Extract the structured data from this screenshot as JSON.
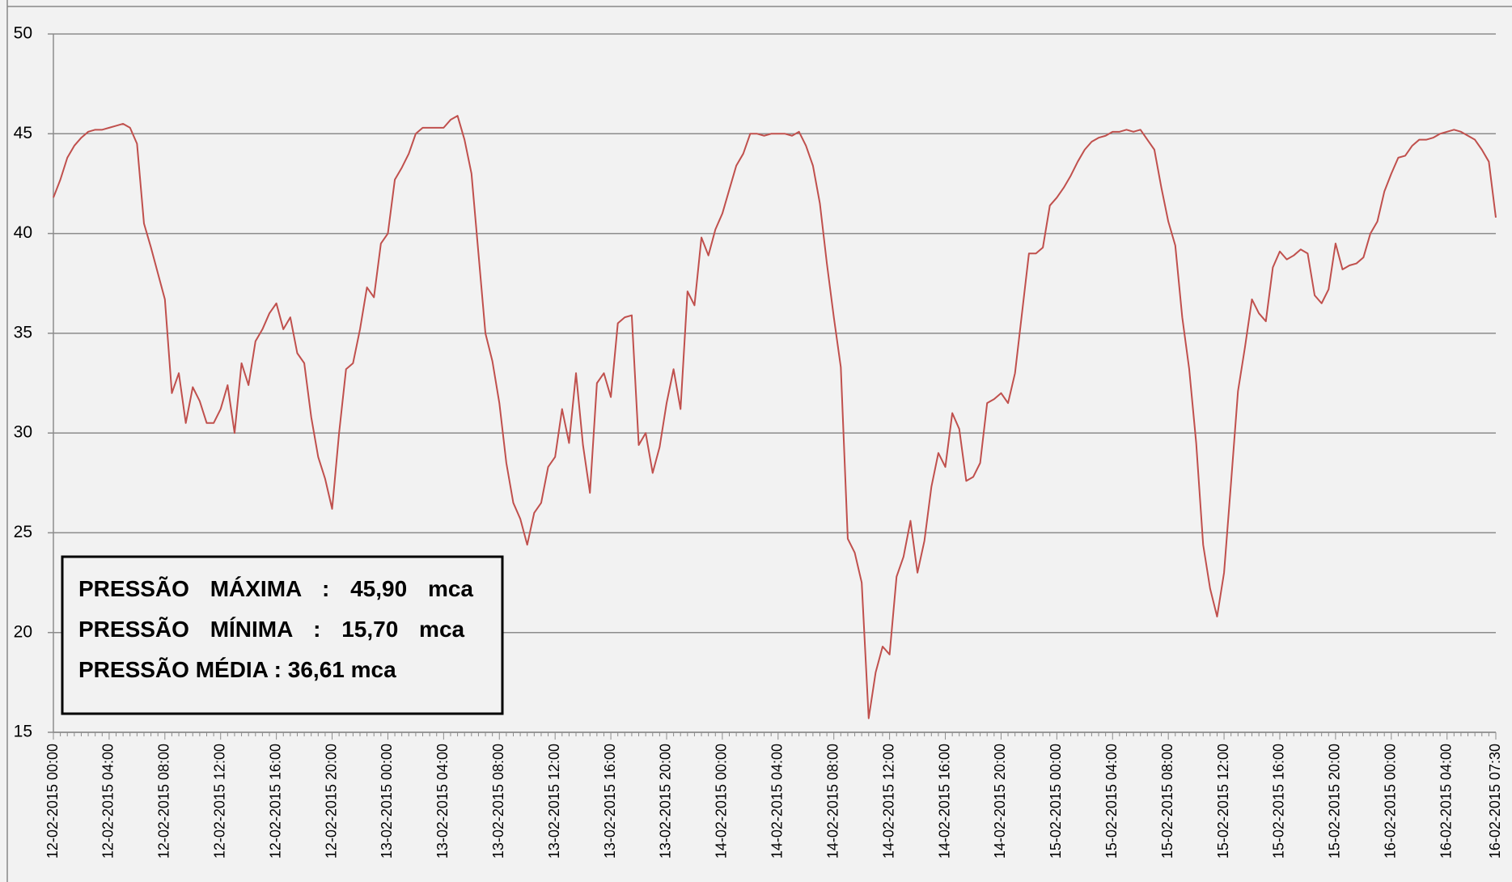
{
  "chart_data": {
    "type": "line",
    "categories": [
      "12-02-2015 00:00",
      null,
      null,
      null,
      null,
      null,
      null,
      null,
      "12-02-2015 04:00",
      null,
      null,
      null,
      null,
      null,
      null,
      null,
      "12-02-2015 08:00",
      null,
      null,
      null,
      null,
      null,
      null,
      null,
      "12-02-2015 12:00",
      null,
      null,
      null,
      null,
      null,
      null,
      null,
      "12-02-2015 16:00",
      null,
      null,
      null,
      null,
      null,
      null,
      null,
      "12-02-2015 20:00",
      null,
      null,
      null,
      null,
      null,
      null,
      null,
      "13-02-2015 00:00",
      null,
      null,
      null,
      null,
      null,
      null,
      null,
      "13-02-2015 04:00",
      null,
      null,
      null,
      null,
      null,
      null,
      null,
      "13-02-2015 08:00",
      null,
      null,
      null,
      null,
      null,
      null,
      null,
      "13-02-2015 12:00",
      null,
      null,
      null,
      null,
      null,
      null,
      null,
      "13-02-2015 16:00",
      null,
      null,
      null,
      null,
      null,
      null,
      null,
      "13-02-2015 20:00",
      null,
      null,
      null,
      null,
      null,
      null,
      null,
      "14-02-2015 00:00",
      null,
      null,
      null,
      null,
      null,
      null,
      null,
      "14-02-2015 04:00",
      null,
      null,
      null,
      null,
      null,
      null,
      null,
      "14-02-2015 08:00",
      null,
      null,
      null,
      null,
      null,
      null,
      null,
      "14-02-2015 12:00",
      null,
      null,
      null,
      null,
      null,
      null,
      null,
      "14-02-2015 16:00",
      null,
      null,
      null,
      null,
      null,
      null,
      null,
      "14-02-2015 20:00",
      null,
      null,
      null,
      null,
      null,
      null,
      null,
      "15-02-2015 00:00",
      null,
      null,
      null,
      null,
      null,
      null,
      null,
      "15-02-2015 04:00",
      null,
      null,
      null,
      null,
      null,
      null,
      null,
      "15-02-2015 08:00",
      null,
      null,
      null,
      null,
      null,
      null,
      null,
      "15-02-2015 12:00",
      null,
      null,
      null,
      null,
      null,
      null,
      null,
      "15-02-2015 16:00",
      null,
      null,
      null,
      null,
      null,
      null,
      null,
      "15-02-2015 20:00",
      null,
      null,
      null,
      null,
      null,
      null,
      null,
      "16-02-2015 00:00",
      null,
      null,
      null,
      null,
      null,
      null,
      null,
      "16-02-2015 04:00",
      null,
      null,
      null,
      null,
      null,
      null,
      "16-02-2015 07:30"
    ],
    "series": [
      {
        "name": null,
        "color": "#c0504d",
        "values": [
          41.8,
          42.7,
          43.8,
          44.4,
          44.8,
          45.1,
          45.2,
          45.2,
          45.3,
          45.4,
          45.5,
          45.3,
          44.5,
          40.5,
          39.3,
          38.0,
          36.7,
          32.0,
          33.0,
          30.5,
          32.3,
          31.6,
          30.5,
          30.5,
          31.2,
          32.4,
          30.0,
          33.5,
          32.4,
          34.6,
          35.2,
          36.0,
          36.5,
          35.2,
          35.8,
          34.0,
          33.5,
          30.8,
          28.8,
          27.7,
          26.2,
          30.0,
          33.2,
          33.5,
          35.2,
          37.3,
          36.8,
          39.5,
          40.0,
          42.7,
          43.3,
          44.0,
          45.0,
          45.3,
          45.3,
          45.3,
          45.3,
          45.7,
          45.9,
          44.7,
          43.0,
          39.0,
          35.0,
          33.6,
          31.5,
          28.5,
          26.5,
          25.7,
          24.4,
          26.0,
          26.5,
          28.3,
          28.8,
          31.2,
          29.5,
          33.0,
          29.4,
          27.0,
          32.5,
          33.0,
          31.8,
          35.5,
          35.8,
          35.9,
          29.4,
          30.0,
          28.0,
          29.3,
          31.5,
          33.2,
          31.2,
          37.1,
          36.4,
          39.8,
          38.9,
          40.2,
          41.0,
          42.2,
          43.4,
          44.0,
          45.0,
          45.0,
          44.9,
          45.0,
          45.0,
          45.0,
          44.9,
          45.1,
          44.4,
          43.4,
          41.5,
          38.5,
          35.8,
          33.3,
          24.7,
          24.0,
          22.5,
          15.7,
          18.0,
          19.3,
          18.9,
          22.8,
          23.8,
          25.6,
          23.0,
          24.6,
          27.3,
          29.0,
          28.3,
          31.0,
          30.2,
          27.6,
          27.8,
          28.5,
          31.5,
          31.7,
          32.0,
          31.5,
          33.0,
          36.0,
          39.0,
          39.0,
          39.3,
          41.4,
          41.8,
          42.3,
          42.9,
          43.6,
          44.2,
          44.6,
          44.8,
          44.9,
          45.1,
          45.1,
          45.2,
          45.1,
          45.2,
          44.7,
          44.2,
          42.3,
          40.6,
          39.4,
          35.8,
          33.2,
          29.5,
          24.4,
          22.2,
          20.8,
          23.0,
          27.5,
          32.1,
          34.3,
          36.7,
          36.0,
          35.6,
          38.3,
          39.1,
          38.7,
          38.9,
          39.2,
          39.0,
          36.9,
          36.5,
          37.2,
          39.5,
          38.2,
          38.4,
          38.5,
          38.8,
          40.0,
          40.6,
          42.1,
          43.0,
          43.8,
          43.9,
          44.4,
          44.7,
          44.7,
          44.8,
          45.0,
          45.1,
          45.2,
          45.1,
          44.9,
          44.7,
          44.2,
          43.6,
          40.8
        ]
      }
    ],
    "ylim": [
      15,
      50
    ],
    "yticks": [
      15,
      20,
      25,
      30,
      35,
      40,
      45,
      50
    ],
    "grid": true,
    "annotations": [
      "PRESSÃO MÁXIMA : 45,90 mca",
      "PRESSÃO MÍNIMA : 15,70 mca",
      "PRESSÃO MÉDIA : 36,61 mca"
    ]
  }
}
